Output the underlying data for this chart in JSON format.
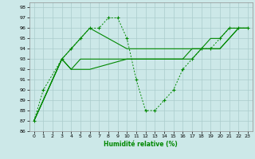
{
  "xlabel": "Humidité relative (%)",
  "bg_color": "#cce8e8",
  "grid_color": "#aacccc",
  "line_color": "#008800",
  "xlim": [
    -0.5,
    23.5
  ],
  "ylim": [
    86,
    98.5
  ],
  "xticks": [
    0,
    1,
    2,
    3,
    4,
    5,
    6,
    7,
    8,
    9,
    10,
    11,
    12,
    13,
    14,
    15,
    16,
    17,
    18,
    19,
    20,
    21,
    22,
    23
  ],
  "yticks": [
    86,
    87,
    88,
    89,
    90,
    91,
    92,
    93,
    94,
    95,
    96,
    97,
    98
  ],
  "lines": [
    {
      "x": [
        0,
        1,
        3,
        4,
        5,
        6,
        7,
        8,
        9,
        10,
        11,
        12,
        13,
        14,
        15,
        16,
        17,
        18,
        19,
        20,
        21,
        22,
        23
      ],
      "y": [
        87,
        90,
        93,
        94,
        95,
        96,
        96,
        97,
        97,
        95,
        91,
        88,
        88,
        89,
        90,
        92,
        93,
        94,
        94,
        95,
        96,
        96,
        96
      ],
      "style": "dotted_marker"
    },
    {
      "x": [
        0,
        3,
        4,
        5,
        6,
        10,
        11,
        12,
        13,
        14,
        15,
        16,
        17,
        18,
        19,
        20,
        21,
        22,
        23
      ],
      "y": [
        87,
        93,
        94,
        95,
        96,
        94,
        94,
        94,
        94,
        94,
        94,
        94,
        94,
        94,
        95,
        95,
        96,
        96,
        96
      ],
      "style": "solid"
    },
    {
      "x": [
        0,
        3,
        4,
        5,
        6,
        10,
        11,
        12,
        13,
        14,
        15,
        16,
        17,
        18,
        19,
        20,
        21,
        22,
        23
      ],
      "y": [
        87,
        93,
        92,
        93,
        93,
        93,
        93,
        93,
        93,
        93,
        93,
        93,
        94,
        94,
        94,
        94,
        95,
        96,
        96
      ],
      "style": "solid"
    },
    {
      "x": [
        0,
        3,
        4,
        5,
        6,
        10,
        11,
        12,
        13,
        14,
        15,
        16,
        17,
        18,
        19,
        20,
        21,
        22,
        23
      ],
      "y": [
        87,
        93,
        92,
        92,
        92,
        93,
        93,
        93,
        93,
        93,
        93,
        93,
        93,
        94,
        94,
        94,
        95,
        96,
        96
      ],
      "style": "solid"
    }
  ]
}
